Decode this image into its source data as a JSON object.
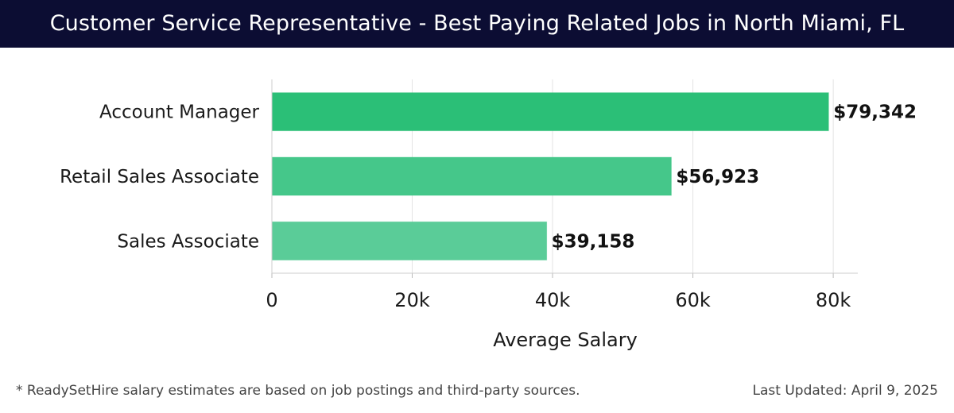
{
  "header": {
    "title": "Customer Service Representative - Best Paying Related Jobs in North Miami, FL"
  },
  "chart_data": {
    "type": "bar",
    "orientation": "horizontal",
    "title": "Customer Service Representative - Best Paying Related Jobs in North Miami, FL",
    "xlabel": "Average Salary",
    "ylabel": "",
    "categories": [
      "Account Manager",
      "Retail Sales Associate",
      "Sales Associate"
    ],
    "values": [
      79342,
      56923,
      39158
    ],
    "value_labels": [
      "$79,342",
      "$56,923",
      "$39,158"
    ],
    "xlim": [
      0,
      83500
    ],
    "xticks": [
      0,
      20000,
      40000,
      60000,
      80000
    ],
    "xtick_labels": [
      "0",
      "20k",
      "40k",
      "60k",
      "80k"
    ],
    "grid": true,
    "bar_colors": [
      "#2bbf77",
      "#45c78a",
      "#5acc98"
    ],
    "bar_border": "#2bbf77"
  },
  "footer": {
    "note": "* ReadySetHire salary estimates are based on job postings and third-party sources.",
    "updated": "Last Updated: April 9, 2025"
  }
}
